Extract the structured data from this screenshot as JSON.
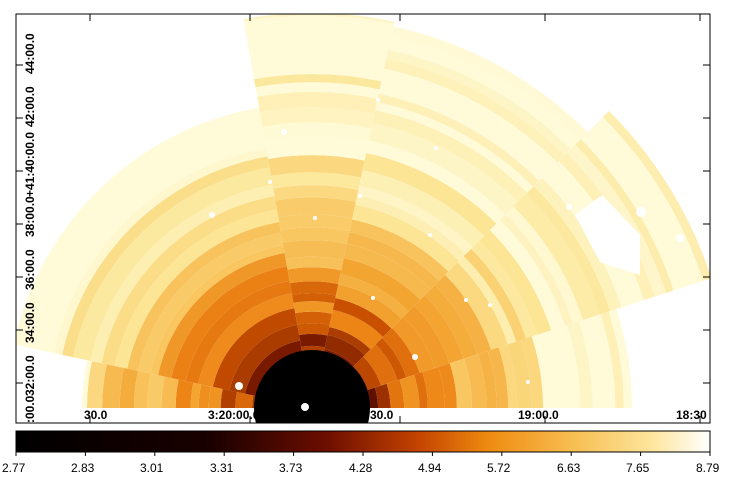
{
  "image": {
    "type": "temperature-map",
    "x_axis_ticks": [
      "30.0",
      "3:20:00.0",
      "30.0",
      "19:00.0",
      "18:30"
    ],
    "y_axis_ticks": [
      "32:00.0",
      "34:00.0",
      "36:00.0",
      "38:00.0",
      "+41:40:00.0",
      "42:00.0",
      "44:00.0"
    ],
    "y_axis_partial_label": ":00.0",
    "colormap": "hot",
    "colormap_stops": [
      "#000000",
      "#3a0000",
      "#8b1a00",
      "#d45a00",
      "#f08a10",
      "#f7b040",
      "#fbd070",
      "#fde9a0",
      "#ffffff"
    ]
  },
  "colorbar": {
    "ticks": [
      "2.77",
      "2.83",
      "3.01",
      "3.31",
      "3.73",
      "4.28",
      "4.94",
      "5.72",
      "6.63",
      "7.65",
      "8.79"
    ]
  }
}
